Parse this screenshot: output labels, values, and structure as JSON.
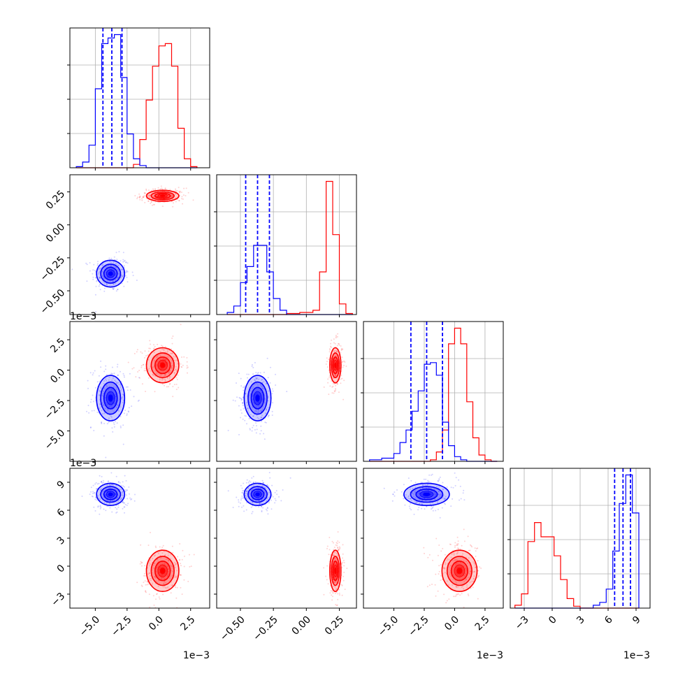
{
  "figure": {
    "offset_label": "1e−3"
  },
  "colors": {
    "series_a": "#ff0000",
    "series_b": "#0000ff",
    "grid": "#b0b0b0"
  },
  "chart_data": {
    "type": "corner",
    "series": [
      {
        "name": "",
        "color": "#0000ff",
        "mean": [
          -3.8,
          -0.37,
          -2.3,
          7.7
        ],
        "sd": [
          0.65,
          0.06,
          1.1,
          0.7
        ],
        "quantiles": [
          [
            -4.4,
            -3.7,
            -2.9
          ],
          [
            -0.46,
            -0.37,
            -0.28
          ],
          [
            -3.6,
            -2.3,
            -1.0
          ],
          [
            6.7,
            7.6,
            8.4
          ]
        ]
      },
      {
        "name": "",
        "color": "#ff0000",
        "mean": [
          0.3,
          0.22,
          0.4,
          -0.5
        ],
        "sd": [
          0.75,
          0.025,
          0.85,
          1.3
        ],
        "quantiles": []
      }
    ],
    "parameters": [
      {
        "range": [
          -7,
          4
        ],
        "ticks": [
          -5.0,
          -2.5,
          0.0,
          2.5
        ],
        "tick_labels": [
          "−5.0",
          "−2.5",
          "0.0",
          "2.5"
        ],
        "offset": "1e−3"
      },
      {
        "range": [
          -0.68,
          0.38
        ],
        "ticks": [
          -0.5,
          -0.25,
          0.0,
          0.25
        ],
        "tick_labels": [
          "−0.50",
          "−0.25",
          "0.00",
          "0.25"
        ],
        "offset": ""
      },
      {
        "range": [
          -7.5,
          4
        ],
        "ticks": [
          -5.0,
          -2.5,
          0.0,
          2.5
        ],
        "tick_labels": [
          "−5.0",
          "−2.5",
          "0.0",
          "2.5"
        ],
        "offset": "1e−3"
      },
      {
        "range": [
          -4.5,
          10.5
        ],
        "ticks": [
          -3,
          0,
          3,
          6,
          9
        ],
        "tick_labels": [
          "−3",
          "0",
          "3",
          "6",
          "9"
        ],
        "offset": "1e−3"
      }
    ],
    "histograms": {
      "0": {
        "bins": [
          -6.5,
          -6.0,
          -5.5,
          -5.0,
          -4.5,
          -4.0,
          -3.5,
          -3.0,
          -2.5,
          -2.0,
          -1.5,
          -1.0,
          -0.5,
          0.0,
          0.5,
          1.0,
          1.5,
          2.0,
          2.5,
          3.0
        ],
        "blue": [
          1,
          5,
          20,
          70,
          110,
          115,
          118,
          80,
          30,
          8,
          2,
          0,
          0,
          0,
          0,
          0,
          0,
          0,
          0
        ],
        "red": [
          0,
          0,
          0,
          0,
          0,
          0,
          0,
          0,
          0,
          3,
          25,
          60,
          90,
          108,
          110,
          90,
          35,
          8,
          1
        ]
      },
      "1": {
        "bins": [
          -0.6,
          -0.55,
          -0.5,
          -0.45,
          -0.4,
          -0.35,
          -0.3,
          -0.25,
          -0.2,
          -0.15,
          -0.1,
          -0.05,
          0.0,
          0.05,
          0.1,
          0.15,
          0.2,
          0.25,
          0.3,
          0.35
        ],
        "blue": [
          2,
          8,
          30,
          45,
          65,
          65,
          40,
          15,
          4,
          0,
          0,
          0,
          0,
          0,
          0,
          0,
          0,
          0,
          0
        ],
        "red": [
          0,
          0,
          0,
          0,
          0,
          0,
          0,
          0,
          0,
          1,
          1,
          2,
          2,
          4,
          40,
          125,
          75,
          10,
          1
        ]
      },
      "2": {
        "bins": [
          -7.0,
          -6.0,
          -5.0,
          -4.5,
          -4.0,
          -3.5,
          -3.0,
          -2.5,
          -2.0,
          -1.5,
          -1.0,
          -0.5,
          0.0,
          0.5,
          1.0,
          1.5,
          2.0,
          2.5,
          3.0,
          3.5
        ],
        "blue": [
          1,
          2,
          5,
          12,
          20,
          32,
          45,
          62,
          63,
          55,
          25,
          10,
          3,
          1,
          0,
          0,
          0,
          0,
          0
        ],
        "red": [
          0,
          0,
          0,
          0,
          0,
          0,
          0,
          0,
          1,
          6,
          20,
          75,
          85,
          75,
          38,
          15,
          4,
          1,
          0
        ]
      },
      "3": {
        "bins": [
          -4.0,
          -3.3,
          -2.6,
          -1.9,
          -1.2,
          -0.5,
          0.2,
          0.9,
          1.6,
          2.3,
          3.0,
          3.7,
          4.4,
          5.1,
          5.8,
          6.5,
          7.2,
          7.9,
          8.6,
          9.3
        ],
        "blue": [
          0,
          0,
          0,
          0,
          0,
          0,
          0,
          0,
          0,
          0,
          0,
          0,
          3,
          6,
          20,
          60,
          110,
          140,
          100
        ],
        "red": [
          3,
          15,
          70,
          90,
          75,
          75,
          55,
          30,
          10,
          2,
          0,
          0,
          0,
          0,
          0,
          0,
          0,
          0,
          0
        ]
      }
    }
  }
}
